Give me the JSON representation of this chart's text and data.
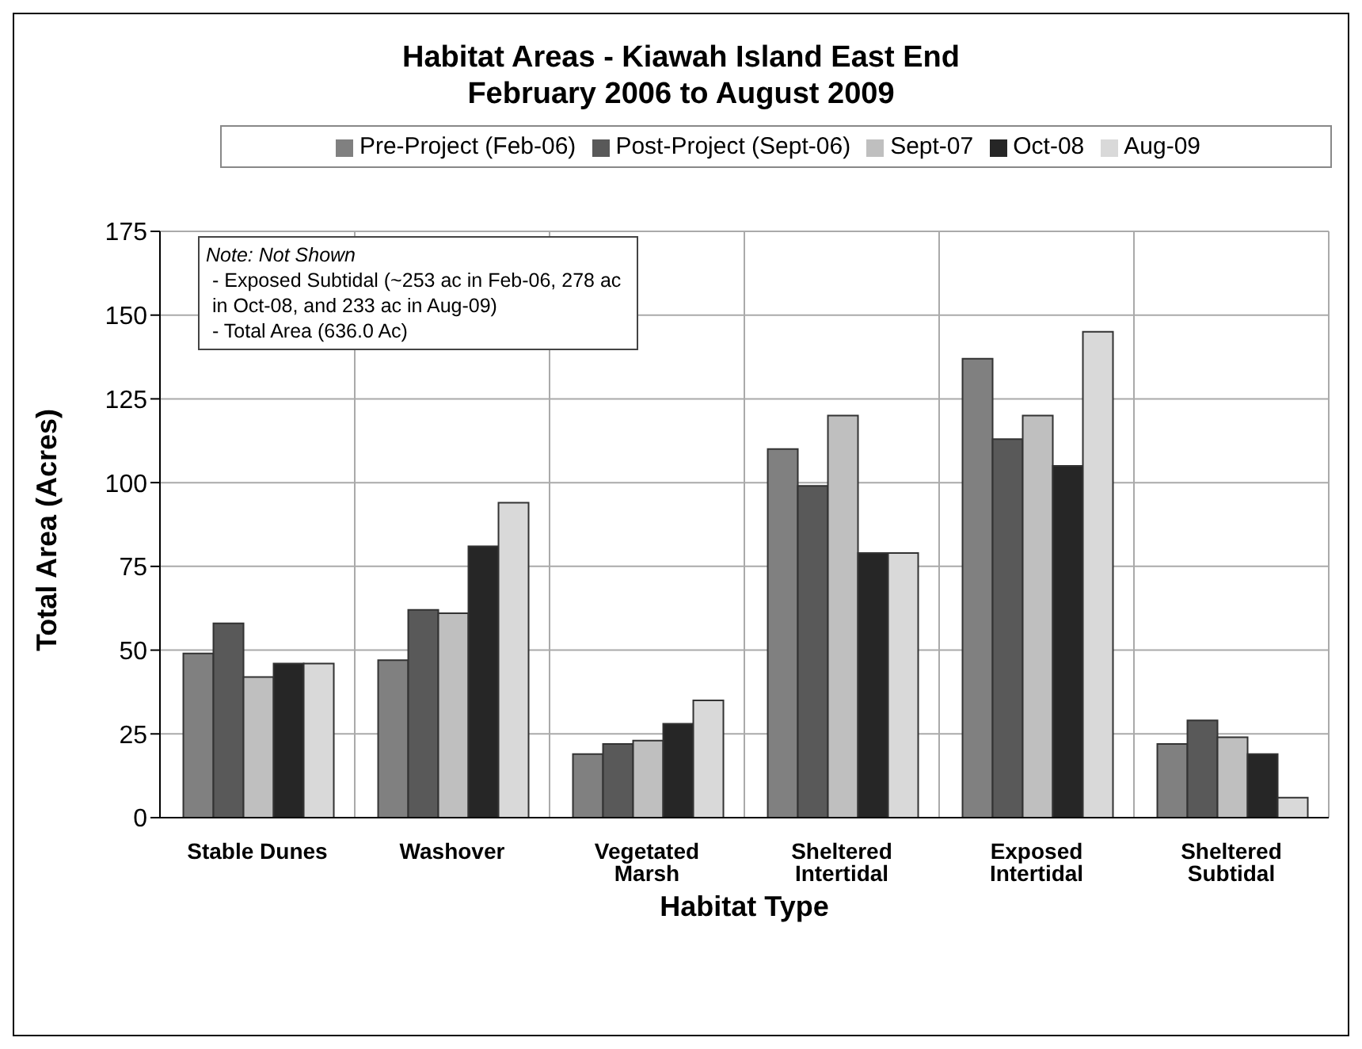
{
  "chart_data": {
    "type": "bar",
    "title": "Habitat Areas - Kiawah Island East End",
    "subtitle": "February 2006 to August 2009",
    "xlabel": "Habitat Type",
    "ylabel": "Total Area (Acres)",
    "categories": [
      "Stable Dunes",
      "Washover",
      "Vegetated Marsh",
      "Sheltered Intertidal",
      "Exposed Intertidal",
      "Sheltered Subtidal"
    ],
    "series": [
      {
        "name": "Pre-Project (Feb-06)",
        "color": "#808080",
        "values": [
          49,
          47,
          19,
          110,
          137,
          22
        ]
      },
      {
        "name": "Post-Project (Sept-06)",
        "color": "#595959",
        "values": [
          58,
          62,
          22,
          99,
          113,
          29
        ]
      },
      {
        "name": "Sept-07",
        "color": "#bfbfbf",
        "values": [
          42,
          61,
          23,
          120,
          120,
          24
        ]
      },
      {
        "name": "Oct-08",
        "color": "#262626",
        "values": [
          46,
          81,
          28,
          79,
          105,
          19
        ]
      },
      {
        "name": "Aug-09",
        "color": "#d9d9d9",
        "values": [
          46,
          94,
          35,
          79,
          145,
          6
        ]
      }
    ],
    "ylim": [
      0,
      175
    ],
    "yticks": [
      0,
      25,
      50,
      75,
      100,
      125,
      150,
      175
    ],
    "grid": true,
    "legend": "top",
    "annotations": [
      "Note:  Not Shown",
      "- Exposed Subtidal (~253 ac in Feb-06, 278 ac in Oct-08, and 233 ac in Aug-09)",
      "- Total Area (636.0 Ac)"
    ]
  }
}
